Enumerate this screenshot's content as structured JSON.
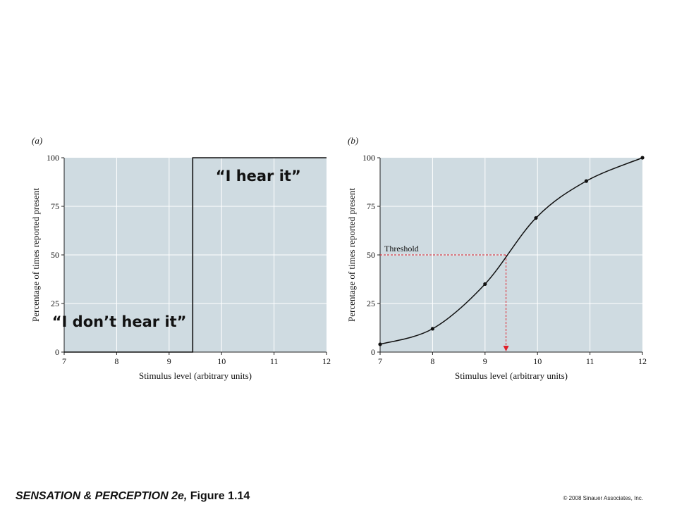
{
  "footer": {
    "title_italic": "SENSATION & PERCEPTION 2e,",
    "title_rest": " Figure 1.14",
    "copyright": "© 2008 Sinauer Associates, Inc."
  },
  "colors": {
    "plot_bg": "#cfdbe1",
    "grid": "#ffffff",
    "curve": "#111111",
    "threshold": "#e0202a"
  },
  "chart_data": [
    {
      "type": "line",
      "panel_label": "(a)",
      "xlabel": "Stimulus level (arbitrary units)",
      "ylabel": "Percentage of times reported present",
      "xlim": [
        7,
        12
      ],
      "ylim": [
        0,
        100
      ],
      "x_ticks": [
        "7",
        "8",
        "9",
        "10",
        "11",
        "12"
      ],
      "y_ticks": [
        "0",
        "25",
        "50",
        "75",
        "100"
      ],
      "grid": true,
      "series": [
        {
          "x": [
            7,
            9.45,
            9.45,
            12
          ],
          "y": [
            0,
            0,
            100,
            100
          ]
        }
      ],
      "annotations": [
        {
          "text": "“I hear it”",
          "x": 10.7,
          "y": 88
        },
        {
          "text": "“I don’t hear it”",
          "x": 8.05,
          "y": 13
        }
      ]
    },
    {
      "type": "line",
      "panel_label": "(b)",
      "xlabel": "Stimulus level (arbitrary units)",
      "ylabel": "Percentage of times reported present",
      "xlim": [
        7,
        12
      ],
      "ylim": [
        0,
        100
      ],
      "x_ticks": [
        "7",
        "8",
        "9",
        "10",
        "11",
        "12"
      ],
      "y_ticks": [
        "0",
        "25",
        "50",
        "75",
        "100"
      ],
      "grid": true,
      "series": [
        {
          "x": [
            7,
            8,
            9,
            9.97,
            10.93,
            12
          ],
          "y": [
            4,
            12,
            35,
            69,
            88,
            100
          ]
        }
      ],
      "threshold": {
        "label": "Threshold",
        "x": 9.4,
        "y": 50
      }
    }
  ]
}
